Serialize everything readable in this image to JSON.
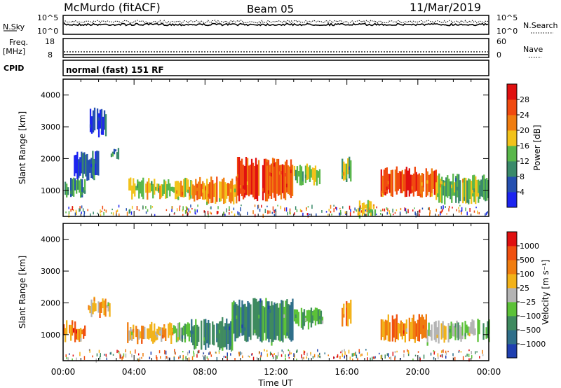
{
  "header": {
    "site": "McMurdo (fitACF)",
    "beam": "Beam 05",
    "date": "11/Mar/2019"
  },
  "noise_panel": {
    "left_label": "N.Sky",
    "right_label": "N.Search",
    "left_ticks": [
      "10^5",
      "10^0"
    ],
    "right_ticks": [
      "10^5",
      "10^0"
    ]
  },
  "freq_panel": {
    "left_label_1": "Freq.",
    "left_label_2": "[MHz]",
    "right_label": "Nave",
    "left_ticks": [
      "18",
      "8"
    ],
    "right_ticks": [
      "60",
      "0"
    ]
  },
  "cpid_panel": {
    "label": "CPID",
    "text": "normal (fast) 151 RF"
  },
  "x_axis": {
    "label": "Time UT",
    "ticks": [
      "00:00",
      "04:00",
      "08:00",
      "12:00",
      "16:00",
      "20:00",
      "00:00"
    ]
  },
  "chart_data": [
    {
      "type": "heatmap",
      "name": "Power",
      "ylabel": "Slant Range [km]",
      "yticks": [
        "1000",
        "2000",
        "3000",
        "4000"
      ],
      "ylim": [
        180,
        4500
      ],
      "xlim_hours": [
        0,
        24
      ],
      "colorbar": {
        "label": "Power [dB]",
        "ticks": [
          "4",
          "8",
          "12",
          "16",
          "20",
          "24",
          "28"
        ],
        "colors": [
          "#1c24f0",
          "#2550b0",
          "#3a8a6a",
          "#59b74a",
          "#f2c21a",
          "#f07d10",
          "#f04a10",
          "#e01010"
        ]
      },
      "regions": [
        {
          "t0": 0.0,
          "t1": 1.2,
          "r0": 900,
          "r1": 1250,
          "level": 2
        },
        {
          "t0": 0.6,
          "t1": 2.0,
          "r0": 1450,
          "r1": 2100,
          "level": 1
        },
        {
          "t0": 1.5,
          "t1": 2.4,
          "r0": 2800,
          "r1": 3450,
          "level": 1
        },
        {
          "t0": 2.6,
          "t1": 3.1,
          "r0": 2100,
          "r1": 2300,
          "level": 2
        },
        {
          "t0": 3.6,
          "t1": 7.2,
          "r0": 850,
          "r1": 1250,
          "level": 4
        },
        {
          "t0": 7.2,
          "t1": 9.8,
          "r0": 700,
          "r1": 1300,
          "level": 5
        },
        {
          "t0": 9.8,
          "t1": 13.0,
          "r0": 800,
          "r1": 1900,
          "level": 6
        },
        {
          "t0": 13.0,
          "t1": 14.5,
          "r0": 1300,
          "r1": 1700,
          "level": 3
        },
        {
          "t0": 15.7,
          "t1": 16.2,
          "r0": 1400,
          "r1": 1950,
          "level": 3
        },
        {
          "t0": 16.6,
          "t1": 17.6,
          "r0": 300,
          "r1": 550,
          "level": 4
        },
        {
          "t0": 17.9,
          "t1": 21.0,
          "r0": 900,
          "r1": 1600,
          "level": 6
        },
        {
          "t0": 21.0,
          "t1": 24.0,
          "r0": 700,
          "r1": 1400,
          "level": 3
        }
      ]
    },
    {
      "type": "heatmap",
      "name": "Velocity",
      "ylabel": "Slant Range [km]",
      "yticks": [
        "1000",
        "2000",
        "3000",
        "4000"
      ],
      "ylim": [
        180,
        4500
      ],
      "xlim_hours": [
        0,
        24
      ],
      "colorbar": {
        "label": "Velocity [m s⁻¹]",
        "ticks": [
          "1000",
          "500",
          "100",
          "25",
          "−25",
          "−100",
          "−500",
          "−1000"
        ],
        "colors": [
          "#1f3fb0",
          "#2f6f8a",
          "#3f8a5f",
          "#5cc238",
          "#b4b4b4",
          "#f2b219",
          "#f07d10",
          "#f05010",
          "#e01010"
        ]
      },
      "regions": [
        {
          "t0": 0.0,
          "t1": 1.3,
          "r0": 900,
          "r1": 1300,
          "level": 6
        },
        {
          "t0": 1.4,
          "t1": 2.6,
          "r0": 1700,
          "r1": 2050,
          "level": 5
        },
        {
          "t0": 3.6,
          "t1": 6.2,
          "r0": 850,
          "r1": 1250,
          "level": 5
        },
        {
          "t0": 6.2,
          "t1": 7.2,
          "r0": 900,
          "r1": 1250,
          "level": 3
        },
        {
          "t0": 7.2,
          "t1": 9.5,
          "r0": 650,
          "r1": 1400,
          "level": 2
        },
        {
          "t0": 9.5,
          "t1": 13.0,
          "r0": 900,
          "r1": 2000,
          "level": 2
        },
        {
          "t0": 13.0,
          "t1": 14.6,
          "r0": 1300,
          "r1": 1700,
          "level": 3
        },
        {
          "t0": 15.7,
          "t1": 16.2,
          "r0": 1400,
          "r1": 1950,
          "level": 6
        },
        {
          "t0": 17.9,
          "t1": 20.5,
          "r0": 900,
          "r1": 1500,
          "level": 6
        },
        {
          "t0": 20.5,
          "t1": 22.0,
          "r0": 850,
          "r1": 1300,
          "level": 4
        },
        {
          "t0": 22.0,
          "t1": 24.0,
          "r0": 900,
          "r1": 1350,
          "level": 3
        }
      ]
    }
  ]
}
